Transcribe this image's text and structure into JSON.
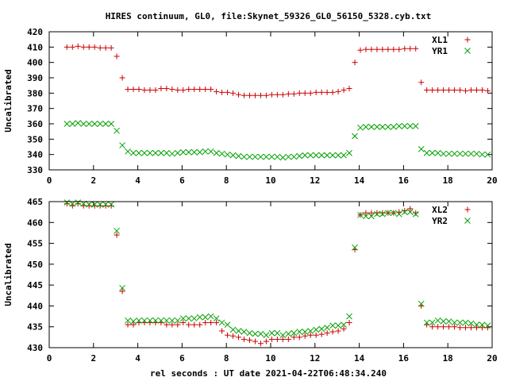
{
  "title": "HIRES continuum, GL0, file:Skynet_59326_GL0_56150_5328.cyb.txt",
  "xlabel": "rel seconds : UT date 2021-04-22T06:48:34.240",
  "colors": {
    "red": "#cc0000",
    "green": "#00a000"
  },
  "chart_data": [
    {
      "type": "scatter",
      "ylabel": "Uncalibrated",
      "xlim": [
        0,
        20
      ],
      "ylim": [
        330,
        420
      ],
      "x_ticks": [
        0,
        2,
        4,
        6,
        8,
        10,
        12,
        14,
        16,
        18,
        20
      ],
      "y_ticks": [
        330,
        340,
        350,
        360,
        370,
        380,
        390,
        400,
        410,
        420
      ],
      "legend_placement": "top-right",
      "series": [
        {
          "name": "XL1",
          "marker": "plus",
          "color": "#cc0000",
          "x": [
            0.8,
            1.05,
            1.3,
            1.55,
            1.8,
            2.05,
            2.3,
            2.55,
            2.8,
            3.05,
            3.3,
            3.55,
            3.8,
            4.05,
            4.3,
            4.55,
            4.8,
            5.05,
            5.3,
            5.55,
            5.8,
            6.05,
            6.3,
            6.55,
            6.8,
            7.05,
            7.3,
            7.55,
            7.8,
            8.05,
            8.3,
            8.55,
            8.8,
            9.05,
            9.3,
            9.55,
            9.8,
            10.05,
            10.3,
            10.55,
            10.8,
            11.05,
            11.3,
            11.55,
            11.8,
            12.05,
            12.3,
            12.55,
            12.8,
            13.05,
            13.3,
            13.55,
            13.8,
            14.05,
            14.3,
            14.55,
            14.8,
            15.05,
            15.3,
            15.55,
            15.8,
            16.05,
            16.3,
            16.55,
            16.8,
            17.05,
            17.3,
            17.55,
            17.8,
            18.05,
            18.3,
            18.55,
            18.8,
            19.05,
            19.3,
            19.55,
            19.8
          ],
          "y": [
            410,
            410,
            410.5,
            410,
            410,
            410,
            409.5,
            409.5,
            409.5,
            404,
            390,
            382.5,
            382.5,
            382.5,
            382,
            382,
            382,
            383,
            383,
            382.5,
            382,
            382,
            382.5,
            382.5,
            382.5,
            382.5,
            382.5,
            381,
            380.5,
            380.5,
            380,
            379,
            378.5,
            378.5,
            378.5,
            378.5,
            378.5,
            379,
            379,
            379,
            379.5,
            379.5,
            380,
            380,
            380,
            380.5,
            380.5,
            380.5,
            380.5,
            381,
            382,
            383,
            400,
            408,
            408.5,
            408.5,
            408.5,
            408.5,
            408.5,
            408.5,
            408.5,
            409,
            409,
            409,
            387,
            382,
            382,
            382,
            382,
            382,
            382,
            382,
            381.5,
            382,
            382,
            382,
            381.5
          ]
        },
        {
          "name": "YR1",
          "marker": "cross",
          "color": "#00a000",
          "x": [
            0.8,
            1.05,
            1.3,
            1.55,
            1.8,
            2.05,
            2.3,
            2.55,
            2.8,
            3.05,
            3.3,
            3.55,
            3.8,
            4.05,
            4.3,
            4.55,
            4.8,
            5.05,
            5.3,
            5.55,
            5.8,
            6.05,
            6.3,
            6.55,
            6.8,
            7.05,
            7.3,
            7.55,
            7.8,
            8.05,
            8.3,
            8.55,
            8.8,
            9.05,
            9.3,
            9.55,
            9.8,
            10.05,
            10.3,
            10.55,
            10.8,
            11.05,
            11.3,
            11.55,
            11.8,
            12.05,
            12.3,
            12.55,
            12.8,
            13.05,
            13.3,
            13.55,
            13.8,
            14.05,
            14.3,
            14.55,
            14.8,
            15.05,
            15.3,
            15.55,
            15.8,
            16.05,
            16.3,
            16.55,
            16.8,
            17.05,
            17.3,
            17.55,
            17.8,
            18.05,
            18.3,
            18.55,
            18.8,
            19.05,
            19.3,
            19.55,
            19.8
          ],
          "y": [
            360,
            360,
            360.5,
            360,
            360,
            360,
            360,
            360,
            360,
            355.5,
            346,
            342,
            341,
            341,
            341,
            341,
            341,
            341,
            341,
            340.5,
            341,
            341.5,
            341.5,
            341.5,
            341.5,
            342,
            342,
            341,
            340.5,
            340,
            339.5,
            339,
            338.5,
            338.5,
            338.5,
            338.5,
            338.5,
            338.5,
            338.5,
            338,
            338.5,
            338.5,
            339,
            339.5,
            339.5,
            339.5,
            339.5,
            339.5,
            339.5,
            339.5,
            339.5,
            341,
            352,
            357.5,
            358,
            358,
            358,
            358,
            358,
            358,
            358.5,
            358.5,
            358.5,
            358.5,
            343.5,
            341,
            341,
            341,
            340.5,
            340.5,
            340.5,
            340.5,
            340.5,
            340.5,
            340.5,
            340,
            340
          ]
        }
      ]
    },
    {
      "type": "scatter",
      "ylabel": "Uncalibrated",
      "xlim": [
        0,
        20
      ],
      "ylim": [
        430,
        465
      ],
      "x_ticks": [
        0,
        2,
        4,
        6,
        8,
        10,
        12,
        14,
        16,
        18,
        20
      ],
      "y_ticks": [
        430,
        435,
        440,
        445,
        450,
        455,
        460,
        465
      ],
      "legend_placement": "top-right",
      "series": [
        {
          "name": "XL2",
          "marker": "plus",
          "color": "#cc0000",
          "x": [
            0.8,
            1.05,
            1.3,
            1.55,
            1.8,
            2.05,
            2.3,
            2.55,
            2.8,
            3.05,
            3.3,
            3.55,
            3.8,
            4.05,
            4.3,
            4.55,
            4.8,
            5.05,
            5.3,
            5.55,
            5.8,
            6.05,
            6.3,
            6.55,
            6.8,
            7.05,
            7.3,
            7.55,
            7.8,
            8.05,
            8.3,
            8.55,
            8.8,
            9.05,
            9.3,
            9.55,
            9.8,
            10.05,
            10.3,
            10.55,
            10.8,
            11.05,
            11.3,
            11.55,
            11.8,
            12.05,
            12.3,
            12.55,
            12.8,
            13.05,
            13.3,
            13.55,
            13.8,
            14.05,
            14.3,
            14.55,
            14.8,
            15.05,
            15.3,
            15.55,
            15.8,
            16.05,
            16.3,
            16.55,
            16.8,
            17.05,
            17.3,
            17.55,
            17.8,
            18.05,
            18.3,
            18.55,
            18.8,
            19.05,
            19.3,
            19.55,
            19.8
          ],
          "y": [
            464.5,
            464,
            464.5,
            464,
            464,
            464,
            464,
            464,
            464,
            457,
            443.5,
            435.5,
            435.5,
            436,
            436,
            436,
            436,
            436,
            435.5,
            435.5,
            435.5,
            436,
            435.5,
            435.5,
            435.5,
            436,
            436,
            436,
            434,
            433,
            432.8,
            432.5,
            432,
            431.8,
            431.5,
            431,
            431.5,
            432,
            432,
            432,
            432,
            432.5,
            432.5,
            432.8,
            433,
            433,
            433.2,
            433.5,
            433.8,
            434,
            434.5,
            436,
            453.5,
            461.8,
            462.3,
            462.3,
            462.3,
            462.3,
            462.3,
            462.3,
            462.5,
            462.8,
            463.3,
            462.3,
            440,
            435.5,
            435,
            435,
            435,
            435,
            435,
            434.8,
            434.8,
            434.8,
            434.8,
            434.8,
            434.8
          ]
        },
        {
          "name": "YR2",
          "marker": "cross",
          "color": "#00a000",
          "x": [
            0.8,
            1.05,
            1.3,
            1.55,
            1.8,
            2.05,
            2.3,
            2.55,
            2.8,
            3.05,
            3.3,
            3.55,
            3.8,
            4.05,
            4.3,
            4.55,
            4.8,
            5.05,
            5.3,
            5.55,
            5.8,
            6.05,
            6.3,
            6.55,
            6.8,
            7.05,
            7.3,
            7.55,
            7.8,
            8.05,
            8.3,
            8.55,
            8.8,
            9.05,
            9.3,
            9.55,
            9.8,
            10.05,
            10.3,
            10.55,
            10.8,
            11.05,
            11.3,
            11.55,
            11.8,
            12.05,
            12.3,
            12.55,
            12.8,
            13.05,
            13.3,
            13.55,
            13.8,
            14.05,
            14.3,
            14.55,
            14.8,
            15.05,
            15.3,
            15.55,
            15.8,
            16.05,
            16.3,
            16.55,
            16.8,
            17.05,
            17.3,
            17.55,
            17.8,
            18.05,
            18.3,
            18.55,
            18.8,
            19.05,
            19.3,
            19.55,
            19.8
          ],
          "y": [
            464.8,
            464.5,
            464.8,
            464.5,
            464.3,
            464.3,
            464.3,
            464.3,
            464.3,
            458,
            444.3,
            436.5,
            436.3,
            436.5,
            436.5,
            436.5,
            436.5,
            436.5,
            436.5,
            436.5,
            436.5,
            437,
            437,
            437,
            437.3,
            437.3,
            437.5,
            437,
            436,
            435.5,
            434.3,
            434,
            433.8,
            433.5,
            433.3,
            433.3,
            433,
            433.5,
            433.5,
            433,
            433.3,
            433.5,
            433.8,
            433.8,
            434,
            434.3,
            434.5,
            434.8,
            435.3,
            435.3,
            435.5,
            437.5,
            454,
            461.8,
            461.5,
            461.5,
            462,
            462,
            462.3,
            462.3,
            462,
            462.5,
            462.5,
            462,
            440.5,
            436,
            436,
            436.5,
            436.3,
            436.3,
            436,
            436,
            436,
            435.8,
            435.5,
            435.5,
            435.3
          ]
        }
      ]
    }
  ]
}
